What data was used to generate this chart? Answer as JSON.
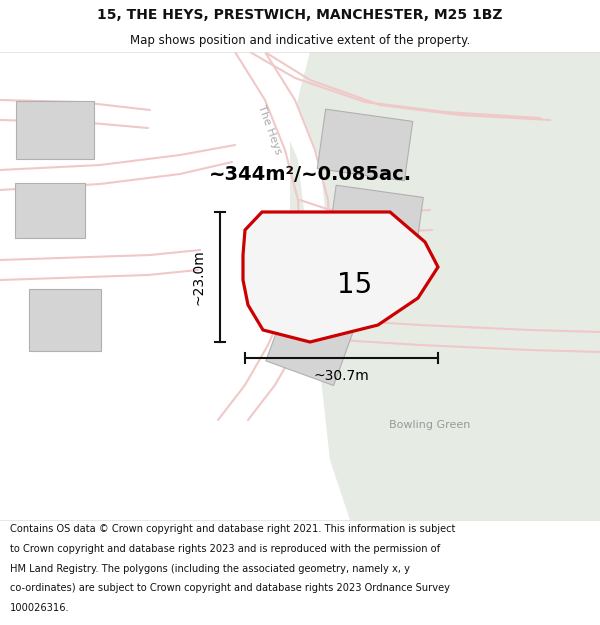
{
  "title": "15, THE HEYS, PRESTWICH, MANCHESTER, M25 1BZ",
  "subtitle": "Map shows position and indicative extent of the property.",
  "footer_lines": [
    "Contains OS data © Crown copyright and database right 2021. This information is subject",
    "to Crown copyright and database rights 2023 and is reproduced with the permission of",
    "HM Land Registry. The polygons (including the associated geometry, namely x, y",
    "co-ordinates) are subject to Crown copyright and database rights 2023 Ordnance Survey",
    "100026316."
  ],
  "area_label": "~344m²/~0.085ac.",
  "number_label": "15",
  "dim_horiz": "~30.7m",
  "dim_vert": "~23.0m",
  "bowling_green_label": "Bowling Green",
  "the_heys_label": "The He",
  "bg_map_color": "#f2f2f0",
  "bg_green_color": "#e6ebe4",
  "road_color": "#f0c8c8",
  "building_color": "#d4d4d4",
  "building_edge_color": "#b0b0b0",
  "plot_fill_color": "#f5f5f5",
  "plot_edge_color": "#cc0000",
  "dim_line_color": "#111111",
  "text_color": "#111111",
  "header_footer_bg": "#ffffff"
}
